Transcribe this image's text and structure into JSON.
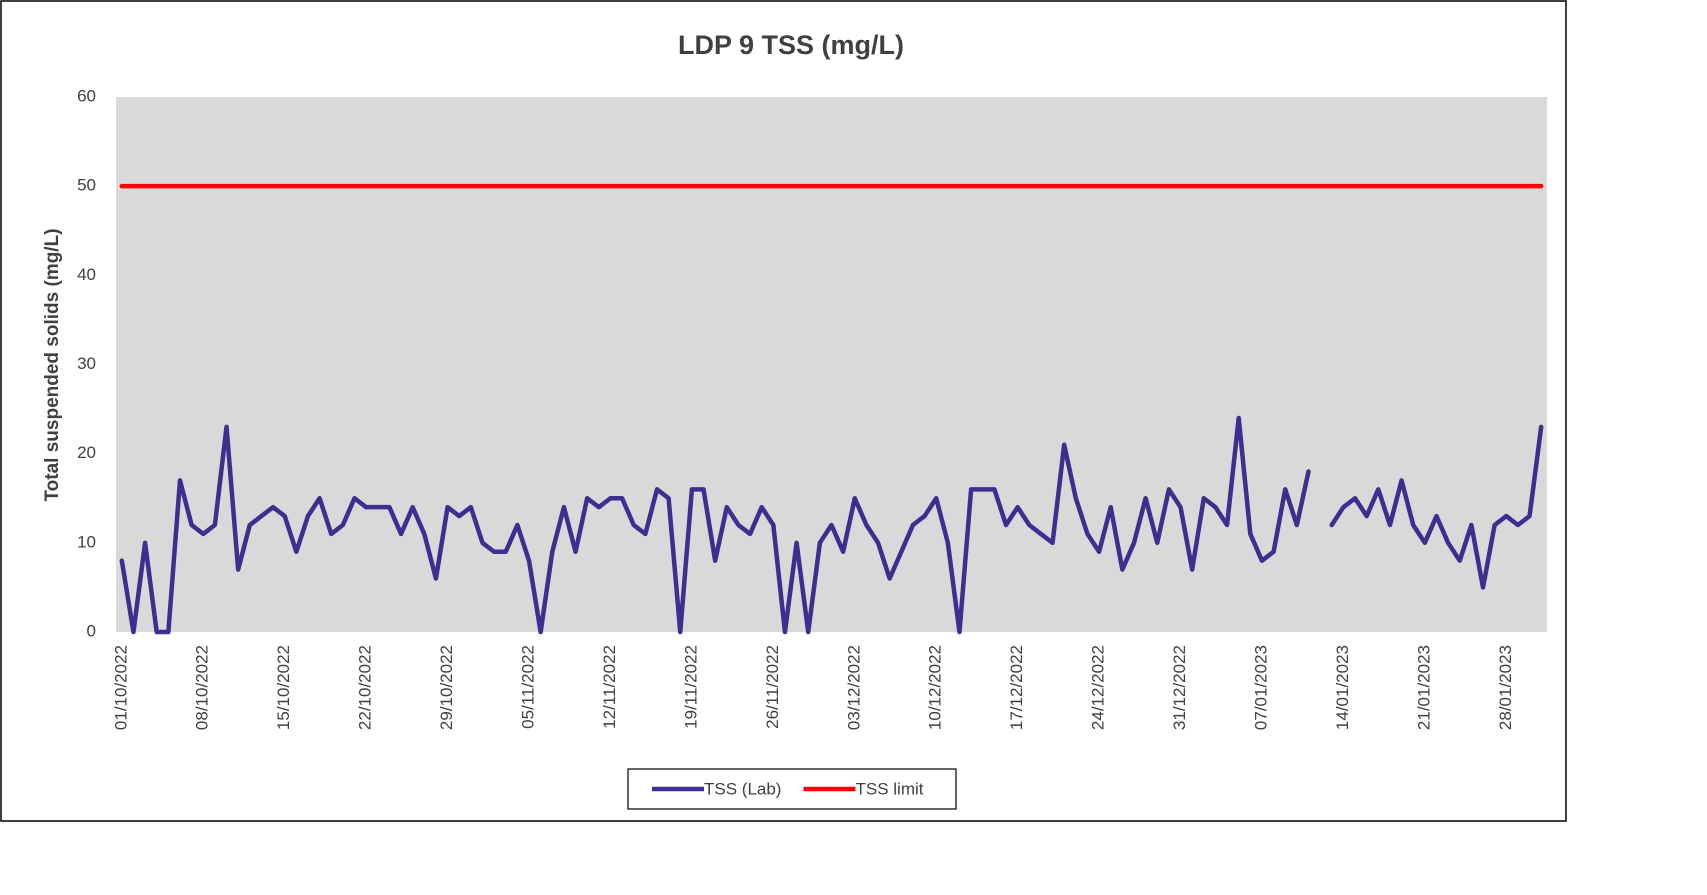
{
  "chart_data": {
    "type": "line",
    "title": "LDP 9 TSS (mg/L)",
    "y_label": "Total suspended solids (mg/L)",
    "categories": [
      "01/10/2022",
      null,
      null,
      null,
      null,
      null,
      null,
      "08/10/2022",
      null,
      null,
      null,
      null,
      null,
      null,
      "15/10/2022",
      null,
      null,
      null,
      null,
      null,
      null,
      "22/10/2022",
      null,
      null,
      null,
      null,
      null,
      null,
      "29/10/2022",
      null,
      null,
      null,
      null,
      null,
      null,
      "05/11/2022",
      null,
      null,
      null,
      null,
      null,
      null,
      "12/11/2022",
      null,
      null,
      null,
      null,
      null,
      null,
      "19/11/2022",
      null,
      null,
      null,
      null,
      null,
      null,
      "26/11/2022",
      null,
      null,
      null,
      null,
      null,
      null,
      "03/12/2022",
      null,
      null,
      null,
      null,
      null,
      null,
      "10/12/2022",
      null,
      null,
      null,
      null,
      null,
      null,
      "17/12/2022",
      null,
      null,
      null,
      null,
      null,
      null,
      "24/12/2022",
      null,
      null,
      null,
      null,
      null,
      null,
      "31/12/2022",
      null,
      null,
      null,
      null,
      null,
      null,
      "07/01/2023",
      null,
      null,
      null,
      null,
      null,
      null,
      "14/01/2023",
      null,
      null,
      null,
      null,
      null,
      null,
      "21/01/2023",
      null,
      null,
      null,
      null,
      null,
      null,
      "28/01/2023",
      null,
      null,
      null
    ],
    "series": [
      {
        "name": "TSS (Lab)",
        "color": "#3f2d8f",
        "values": [
          8,
          0,
          10,
          0,
          0,
          17,
          12,
          11,
          12,
          23,
          7,
          12,
          13,
          14,
          13,
          9,
          13,
          15,
          11,
          12,
          15,
          14,
          14,
          14,
          11,
          14,
          11,
          6,
          14,
          13,
          14,
          10,
          9,
          9,
          12,
          8,
          0,
          9,
          14,
          9,
          15,
          14,
          15,
          15,
          12,
          11,
          16,
          15,
          0,
          16,
          16,
          8,
          14,
          12,
          11,
          14,
          12,
          0,
          10,
          0,
          10,
          12,
          9,
          15,
          12,
          10,
          6,
          9,
          12,
          13,
          15,
          10,
          0,
          16,
          16,
          16,
          12,
          14,
          12,
          11,
          10,
          21,
          15,
          11,
          9,
          14,
          7,
          10,
          15,
          10,
          16,
          14,
          7,
          15,
          14,
          12,
          24,
          11,
          8,
          9,
          16,
          12,
          18,
          null,
          12,
          14,
          15,
          13,
          16,
          12,
          17,
          12,
          10,
          13,
          10,
          8,
          12,
          5,
          12,
          13,
          12,
          13,
          23
        ]
      },
      {
        "name": "TSS limit",
        "color": "#ff0000",
        "values": [
          50,
          50,
          50,
          50,
          50,
          50,
          50,
          50,
          50,
          50,
          50,
          50,
          50,
          50,
          50,
          50,
          50,
          50,
          50,
          50,
          50,
          50,
          50,
          50,
          50,
          50,
          50,
          50,
          50,
          50,
          50,
          50,
          50,
          50,
          50,
          50,
          50,
          50,
          50,
          50,
          50,
          50,
          50,
          50,
          50,
          50,
          50,
          50,
          50,
          50,
          50,
          50,
          50,
          50,
          50,
          50,
          50,
          50,
          50,
          50,
          50,
          50,
          50,
          50,
          50,
          50,
          50,
          50,
          50,
          50,
          50,
          50,
          50,
          50,
          50,
          50,
          50,
          50,
          50,
          50,
          50,
          50,
          50,
          50,
          50,
          50,
          50,
          50,
          50,
          50,
          50,
          50,
          50,
          50,
          50,
          50,
          50,
          50,
          50,
          50,
          50,
          50,
          50,
          50,
          50,
          50,
          50,
          50,
          50,
          50,
          50,
          50,
          50,
          50,
          50,
          50,
          50,
          50,
          50,
          50,
          50,
          50,
          50
        ]
      }
    ],
    "ylim": [
      0,
      60
    ],
    "yticks": [
      0,
      10,
      20,
      30,
      40,
      50,
      60
    ],
    "grid": false,
    "legend": "bottom"
  }
}
